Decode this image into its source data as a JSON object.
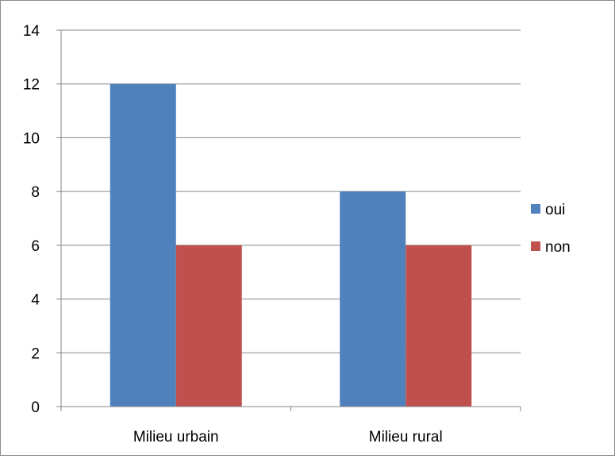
{
  "chart_data": {
    "type": "bar",
    "categories": [
      "Milieu urbain",
      "Milieu rural"
    ],
    "series": [
      {
        "name": "oui",
        "values": [
          12,
          8
        ],
        "color": "#4F81BD"
      },
      {
        "name": "non",
        "values": [
          6,
          6
        ],
        "color": "#C0504D"
      }
    ],
    "ylim": [
      0,
      14
    ],
    "yticks": [
      "0",
      "2",
      "4",
      "6",
      "8",
      "10",
      "12",
      "14"
    ],
    "grid": true,
    "legend": "right",
    "title": "",
    "xlabel": "",
    "ylabel": ""
  }
}
